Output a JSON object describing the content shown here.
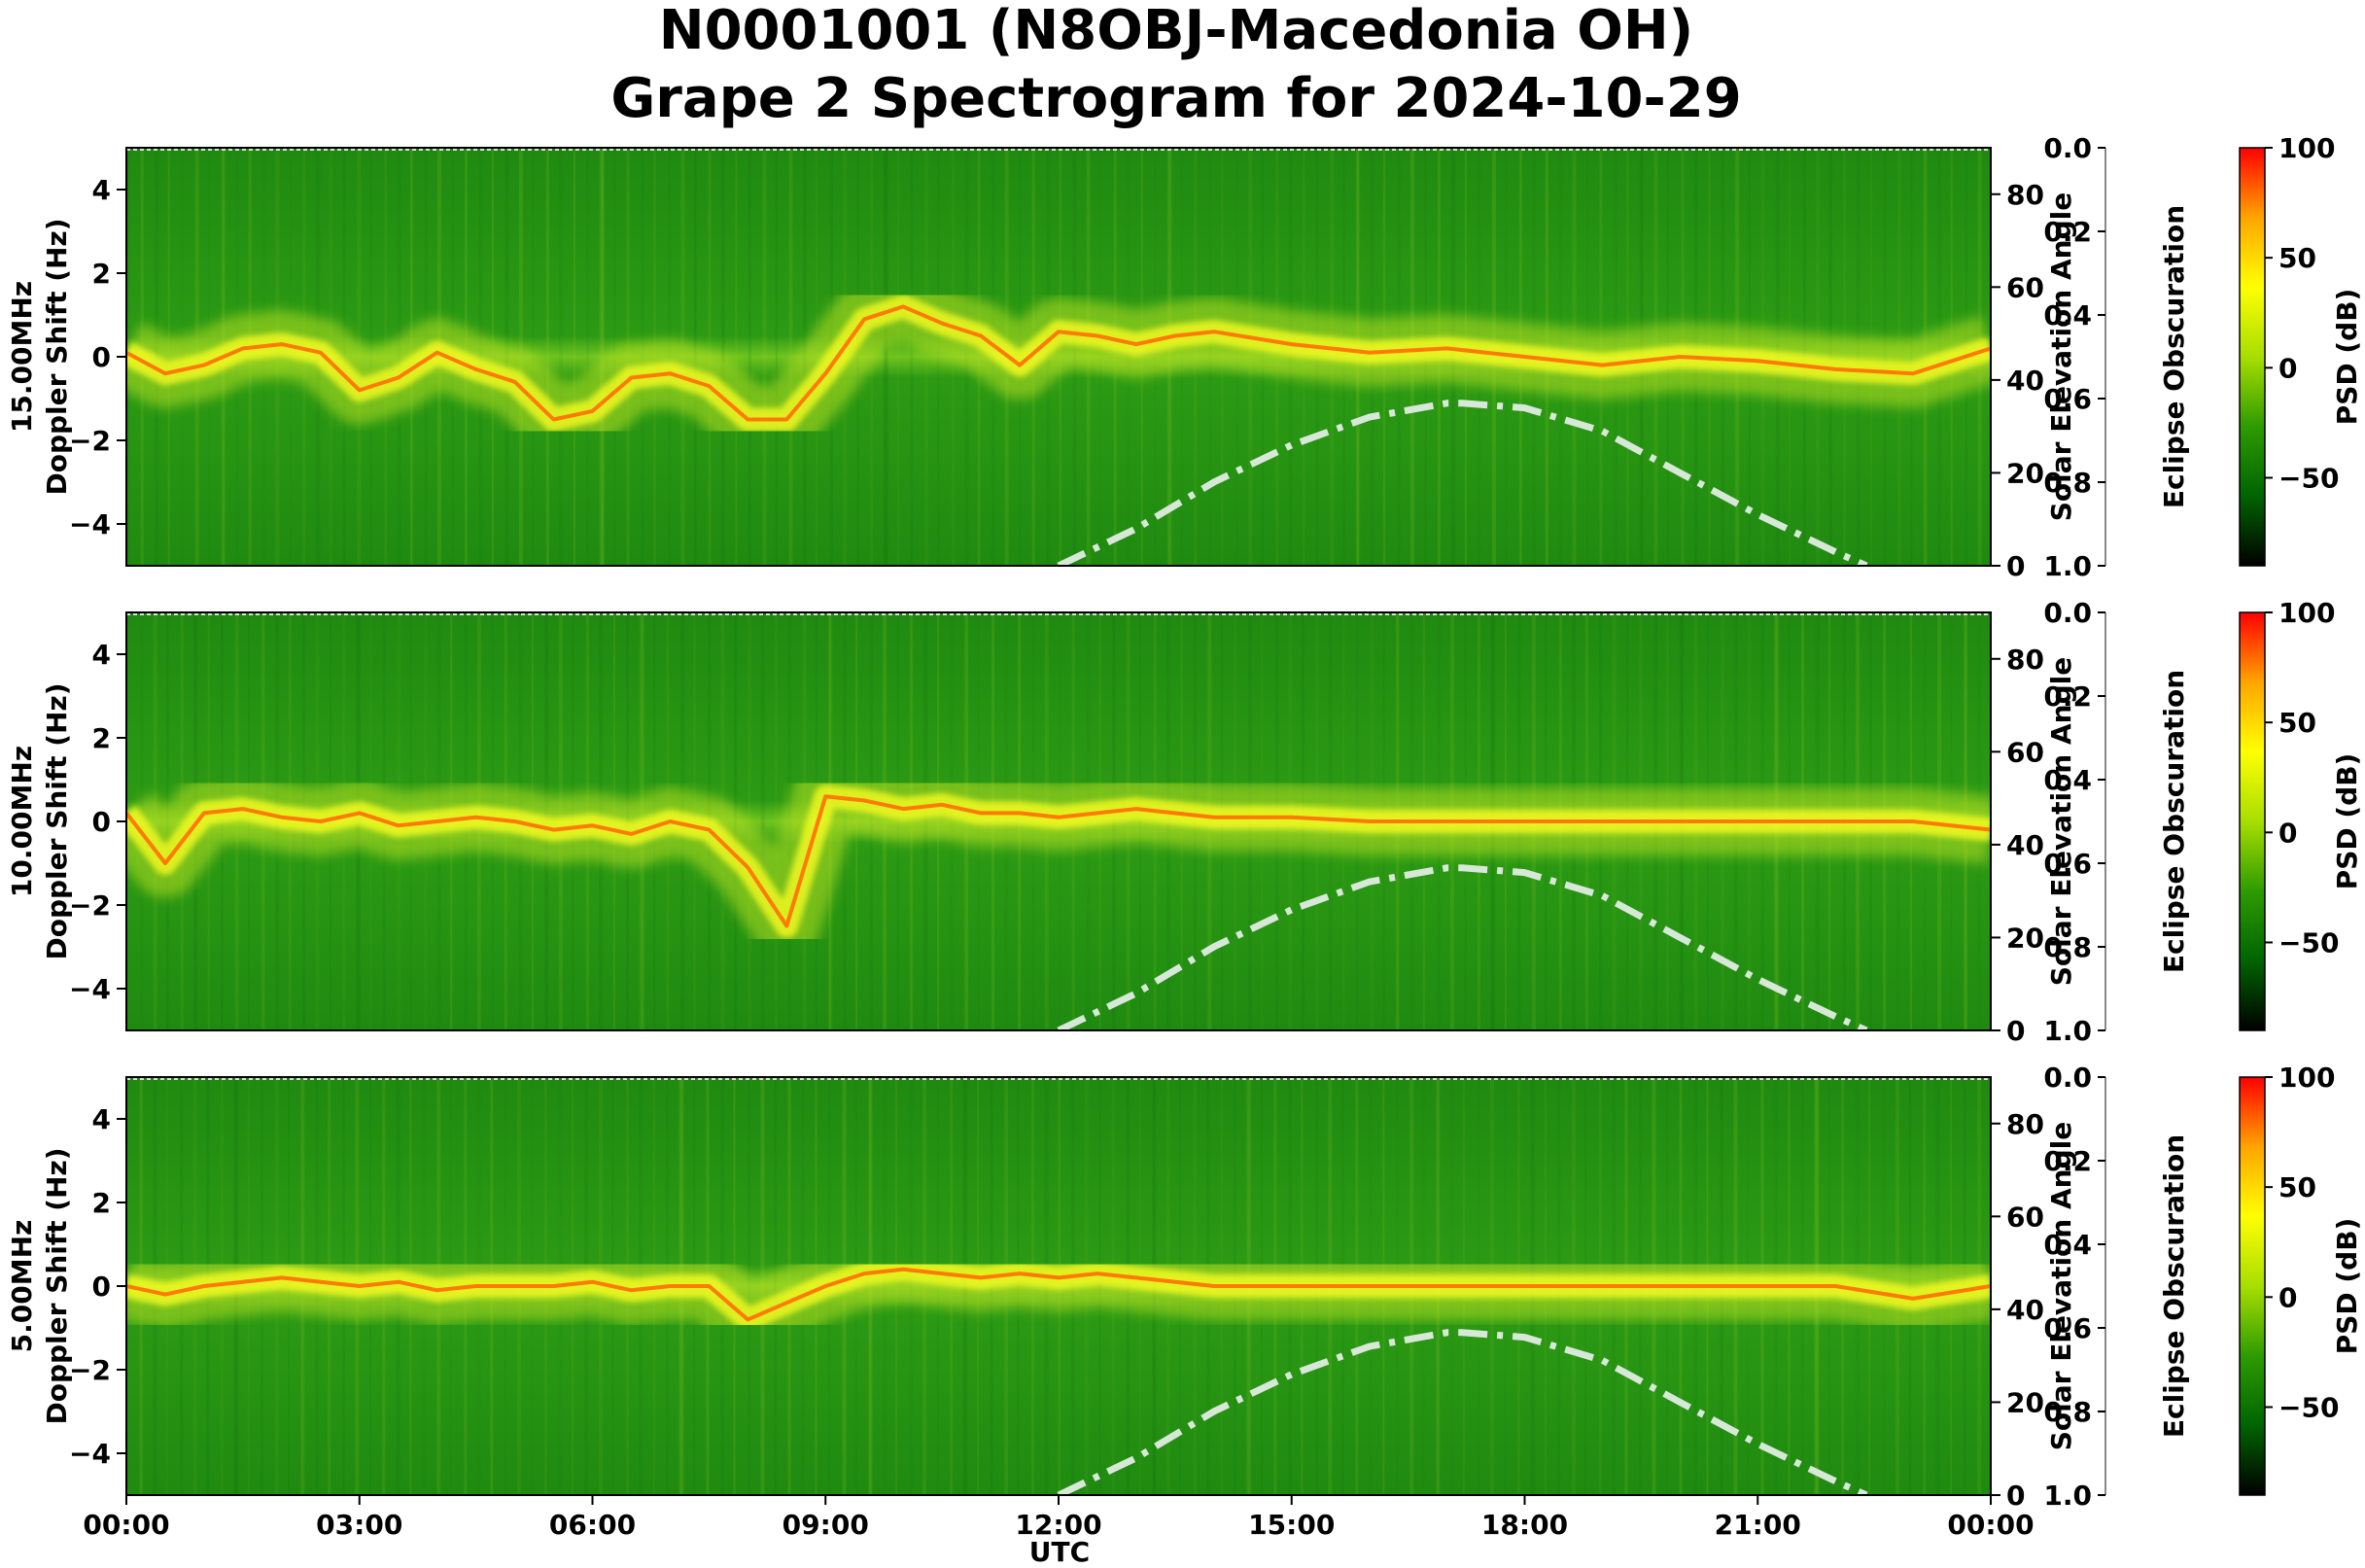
{
  "title_line1": "N0001001 (N8OBJ-Macedonia OH)",
  "title_line2": "Grape 2 Spectrogram for 2024-10-29",
  "chart_data": {
    "type": "heatmap",
    "x_label": "UTC",
    "x_ticks": [
      "00:00",
      "03:00",
      "06:00",
      "09:00",
      "12:00",
      "15:00",
      "18:00",
      "21:00",
      "00:00"
    ],
    "y_label": "Doppler Shift (Hz)",
    "y_range": [
      -5,
      5
    ],
    "y_ticks": [
      4,
      2,
      0,
      -2,
      -4
    ],
    "solar_axis_label": "Solar Elevation Angle",
    "solar_range": [
      0,
      90
    ],
    "solar_ticks": [
      0,
      20,
      40,
      60,
      80
    ],
    "eclipse_axis_label": "Eclipse Obscuration",
    "eclipse_range": [
      0.0,
      1.0
    ],
    "eclipse_ticks": [
      "0.0",
      "0.2",
      "0.4",
      "0.6",
      "0.8",
      "1.0"
    ],
    "colorbar_label": "PSD (dB)",
    "colorbar_range": [
      -90,
      100
    ],
    "colorbar_ticks": [
      100,
      50,
      0,
      -50
    ],
    "colorbar_colors": [
      "#000000",
      "#006400",
      "#2e9b00",
      "#a8de00",
      "#ffff00",
      "#ffa500",
      "#ff0000"
    ],
    "solar_elevation_curve": {
      "x_hours": [
        12.0,
        13.0,
        14.0,
        15.0,
        16.0,
        17.0,
        17.2,
        18.0,
        19.0,
        20.0,
        21.0,
        22.0,
        22.4
      ],
      "y_degrees": [
        0,
        8,
        18,
        26,
        32,
        35,
        35,
        34,
        29,
        20,
        11,
        3,
        0
      ],
      "color": "#d8e8d8",
      "style": "dash-dot"
    },
    "panels": [
      {
        "frequency_label": "15.00MHz",
        "carrier_trace_x_hours": [
          0,
          0.5,
          1,
          1.5,
          2,
          2.5,
          3,
          3.5,
          4,
          4.5,
          5,
          5.5,
          6,
          6.5,
          7,
          7.5,
          8,
          8.5,
          9,
          9.5,
          10,
          10.5,
          11,
          11.5,
          12,
          12.5,
          13,
          13.5,
          14,
          15,
          16,
          17,
          18,
          19,
          20,
          21,
          22,
          23,
          24
        ],
        "carrier_trace_doppler_hz": [
          0.1,
          -0.4,
          -0.2,
          0.2,
          0.3,
          0.1,
          -0.8,
          -0.5,
          0.1,
          -0.3,
          -0.6,
          -1.5,
          -1.3,
          -0.5,
          -0.4,
          -0.7,
          -1.5,
          -1.5,
          -0.4,
          0.9,
          1.2,
          0.8,
          0.5,
          -0.2,
          0.6,
          0.5,
          0.3,
          0.5,
          0.6,
          0.3,
          0.1,
          0.2,
          0,
          -0.2,
          0,
          -0.1,
          -0.3,
          -0.4,
          0.2
        ]
      },
      {
        "frequency_label": "10.00MHz",
        "carrier_trace_x_hours": [
          0,
          0.5,
          1,
          1.5,
          2,
          2.5,
          3,
          3.5,
          4,
          4.5,
          5,
          5.5,
          6,
          6.5,
          7,
          7.5,
          8,
          8.5,
          9,
          9.5,
          10,
          10.5,
          11,
          11.5,
          12,
          13,
          14,
          15,
          16,
          17,
          18,
          19,
          20,
          21,
          22,
          23,
          24
        ],
        "carrier_trace_doppler_hz": [
          0.2,
          -1.0,
          0.2,
          0.3,
          0.1,
          0.0,
          0.2,
          -0.1,
          0.0,
          0.1,
          0.0,
          -0.2,
          -0.1,
          -0.3,
          0.0,
          -0.2,
          -1.1,
          -2.5,
          0.6,
          0.5,
          0.3,
          0.4,
          0.2,
          0.2,
          0.1,
          0.3,
          0.1,
          0.1,
          0.0,
          0.0,
          0.0,
          0.0,
          0.0,
          0.0,
          0.0,
          0.0,
          -0.2
        ]
      },
      {
        "frequency_label": "5.00MHz",
        "carrier_trace_x_hours": [
          0,
          0.5,
          1,
          1.5,
          2,
          2.5,
          3,
          3.5,
          4,
          4.5,
          5,
          5.5,
          6,
          6.5,
          7,
          7.5,
          8,
          8.5,
          9,
          9.5,
          10,
          10.5,
          11,
          11.5,
          12,
          12.5,
          13,
          14,
          15,
          16,
          17,
          18,
          19,
          20,
          21,
          22,
          23,
          24
        ],
        "carrier_trace_doppler_hz": [
          0.0,
          -0.2,
          0.0,
          0.1,
          0.2,
          0.1,
          0.0,
          0.1,
          -0.1,
          0.0,
          0.0,
          0.0,
          0.1,
          -0.1,
          0.0,
          0.0,
          -0.8,
          -0.4,
          0.0,
          0.3,
          0.4,
          0.3,
          0.2,
          0.3,
          0.2,
          0.3,
          0.2,
          0.0,
          0.0,
          0.0,
          0.0,
          0.0,
          0.0,
          0.0,
          0.0,
          0.0,
          -0.3,
          0.0
        ]
      }
    ]
  }
}
